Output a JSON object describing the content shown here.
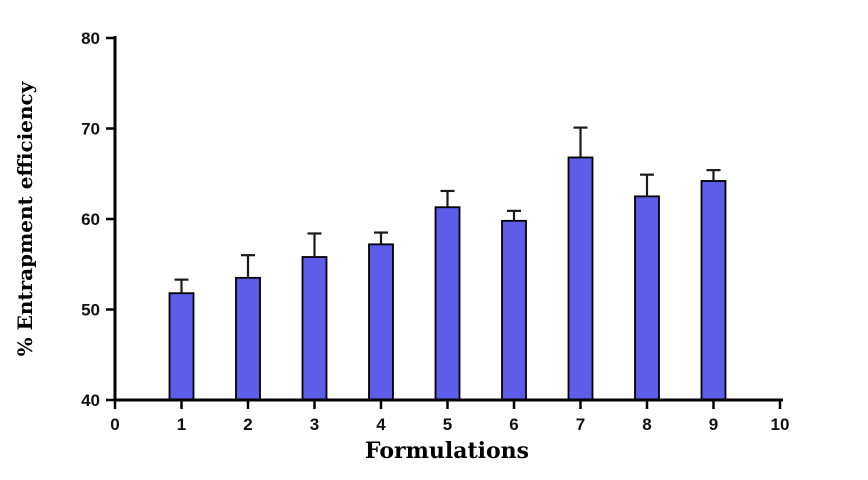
{
  "chart_data": {
    "type": "bar",
    "title": "",
    "xlabel": "Formulations",
    "ylabel": "% Entrapment efficiency",
    "xlim": [
      0,
      10
    ],
    "ylim": [
      40,
      80
    ],
    "x_ticks": [
      0,
      1,
      2,
      3,
      4,
      5,
      6,
      7,
      8,
      9,
      10
    ],
    "y_ticks": [
      40,
      50,
      60,
      70,
      80
    ],
    "categories": [
      1,
      2,
      3,
      4,
      5,
      6,
      7,
      8,
      9
    ],
    "values": [
      51.8,
      53.5,
      55.8,
      57.2,
      61.3,
      59.8,
      66.8,
      62.5,
      64.2
    ],
    "errors": [
      1.5,
      2.5,
      2.6,
      1.3,
      1.8,
      1.1,
      3.3,
      2.4,
      1.2
    ],
    "error_direction": "upper",
    "grid": false,
    "legend": null,
    "colors": {
      "bar_fill": "#5d5dea",
      "bar_stroke": "#000000",
      "error_bar": "#1a1a1a",
      "axis": "#000000",
      "background": "#ffffff"
    }
  }
}
